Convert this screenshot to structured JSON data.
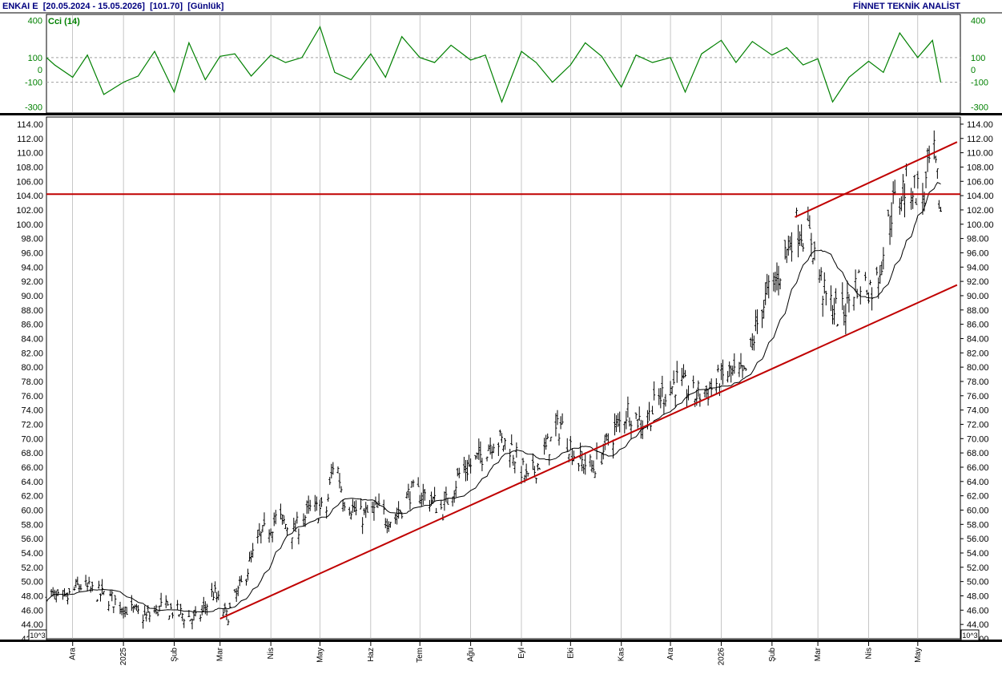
{
  "header": {
    "symbol": "ENKAI E",
    "period": "[20.05.2024 - 15.05.2026]",
    "last": "[101.70]",
    "interval": "[Günlük]",
    "source": "FİNNET TEKNİK ANALİST"
  },
  "colors": {
    "bars": "#000000",
    "cci": "#008000",
    "ma": "#000000",
    "lines": "#c00000",
    "grid": "#a0a0a0"
  },
  "chart_data": [
    {
      "type": "line",
      "indicator": "Cci (14)",
      "ylim": [
        -350,
        450
      ],
      "yticks": [
        "400",
        "100",
        "0",
        "-100",
        "-300"
      ],
      "yticks_values": [
        400,
        100,
        0,
        -100,
        -300
      ],
      "reference_lines": [
        100,
        -100
      ],
      "x_months": [
        "Ara",
        "2025",
        "Şub",
        "Mar",
        "Nis",
        "May",
        "Haz",
        "Tem",
        "Ağu",
        "Eyl",
        "Eki",
        "Kas",
        "Ara",
        "2026",
        "Şub",
        "Mar",
        "Nis",
        "May"
      ],
      "x": [
        "2024-11",
        "2024-11-20",
        "2024-12-01",
        "2024-12-10",
        "2024-12-20",
        "2025-01-01",
        "2025-01-10",
        "2025-01-20",
        "2025-02-01",
        "2025-02-10",
        "2025-02-20",
        "2025-03-01",
        "2025-03-10",
        "2025-03-20",
        "2025-04-01",
        "2025-04-10",
        "2025-04-20",
        "2025-05-01",
        "2025-05-10",
        "2025-05-20",
        "2025-06-01",
        "2025-06-10",
        "2025-06-20",
        "2025-07-01",
        "2025-07-10",
        "2025-07-20",
        "2025-08-01",
        "2025-08-10",
        "2025-08-20",
        "2025-09-01",
        "2025-09-10",
        "2025-09-20",
        "2025-10-01",
        "2025-10-10",
        "2025-10-20",
        "2025-11-01",
        "2025-11-10",
        "2025-11-20",
        "2025-12-01",
        "2025-12-10",
        "2025-12-20",
        "2026-01-01",
        "2026-01-10",
        "2026-01-20",
        "2026-02-01",
        "2026-02-10",
        "2026-02-20",
        "2026-03-01",
        "2026-03-10",
        "2026-03-20",
        "2026-04-01",
        "2026-04-10",
        "2026-04-20",
        "2026-05-01",
        "2026-05-10",
        "2026-05-15"
      ],
      "values": [
        100,
        40,
        -60,
        120,
        -200,
        -100,
        -50,
        150,
        -180,
        220,
        -80,
        110,
        130,
        -50,
        120,
        60,
        100,
        350,
        -20,
        -80,
        130,
        -60,
        270,
        100,
        60,
        200,
        80,
        120,
        -260,
        150,
        60,
        -100,
        40,
        220,
        110,
        -140,
        120,
        60,
        100,
        -180,
        130,
        240,
        60,
        230,
        120,
        180,
        40,
        90,
        -260,
        -60,
        70,
        -20,
        300,
        100,
        240,
        -100
      ]
    },
    {
      "type": "bar",
      "subtype": "ohlc",
      "ylim": [
        42,
        115
      ],
      "yticks": [
        "114.00",
        "112.00",
        "110.00",
        "108.00",
        "106.00",
        "104.00",
        "102.00",
        "100.00",
        "98.00",
        "96.00",
        "94.00",
        "92.00",
        "90.00",
        "88.00",
        "86.00",
        "84.00",
        "82.00",
        "80.00",
        "78.00",
        "76.00",
        "74.00",
        "72.00",
        "70.00",
        "68.00",
        "66.00",
        "64.00",
        "62.00",
        "60.00",
        "58.00",
        "56.00",
        "54.00",
        "52.00",
        "50.00",
        "48.00",
        "46.00",
        "44.00",
        "42.00"
      ],
      "x_months": [
        "Ara",
        "2025",
        "Şub",
        "Mar",
        "Nis",
        "May",
        "Haz",
        "Tem",
        "Ağu",
        "Eyl",
        "Eki",
        "Kas",
        "Ara",
        "2026",
        "Şub",
        "Mar",
        "Nis",
        "May"
      ],
      "scale_label": "10^3",
      "price_anchors": {
        "dates": [
          "2024-11-15",
          "2024-11-25",
          "2024-12-05",
          "2024-12-15",
          "2024-12-25",
          "2025-01-05",
          "2025-01-15",
          "2025-01-25",
          "2025-02-05",
          "2025-02-15",
          "2025-02-25",
          "2025-03-05",
          "2025-03-15",
          "2025-03-25",
          "2025-04-05",
          "2025-04-15",
          "2025-04-25",
          "2025-05-05",
          "2025-05-10",
          "2025-05-15",
          "2025-05-25",
          "2025-06-05",
          "2025-06-15",
          "2025-06-25",
          "2025-07-05",
          "2025-07-15",
          "2025-07-25",
          "2025-08-05",
          "2025-08-15",
          "2025-08-25",
          "2025-09-05",
          "2025-09-15",
          "2025-09-25",
          "2025-10-05",
          "2025-10-15",
          "2025-10-25",
          "2025-11-05",
          "2025-11-15",
          "2025-11-25",
          "2025-12-05",
          "2025-12-15",
          "2025-12-25",
          "2026-01-05",
          "2026-01-15",
          "2026-01-25",
          "2026-02-05",
          "2026-02-15",
          "2026-02-25",
          "2026-03-05",
          "2026-03-15",
          "2026-03-25",
          "2026-04-05",
          "2026-04-15",
          "2026-04-25",
          "2026-05-05",
          "2026-05-10",
          "2026-05-15"
        ],
        "close": [
          48.5,
          47.0,
          49.5,
          48.5,
          47.5,
          46.0,
          45.0,
          46.5,
          45.5,
          44.5,
          48.5,
          45.0,
          50.0,
          56.0,
          59.0,
          57.0,
          60.0,
          60.0,
          68.0,
          62.0,
          59.0,
          60.0,
          58.5,
          62.5,
          62.0,
          60.0,
          65.0,
          67.0,
          70.0,
          69.0,
          64.0,
          68.0,
          72.0,
          67.0,
          66.0,
          70.0,
          74.0,
          72.0,
          76.0,
          78.0,
          76.0,
          77.0,
          79.0,
          78.5,
          88.0,
          93.0,
          100.0,
          98.0,
          90.0,
          87.0,
          92.0,
          91.0,
          102.0,
          106.0,
          104.0,
          111.0,
          101.7
        ]
      },
      "moving_average": true,
      "horizontal_line": 104.2,
      "trend_lines": [
        {
          "from": [
            "2025-03-01",
            44.8
          ],
          "to": [
            "2026-05-25",
            91.5
          ]
        },
        {
          "from": [
            "2026-02-15",
            101.0
          ],
          "to": [
            "2026-05-25",
            111.5
          ]
        }
      ]
    }
  ]
}
